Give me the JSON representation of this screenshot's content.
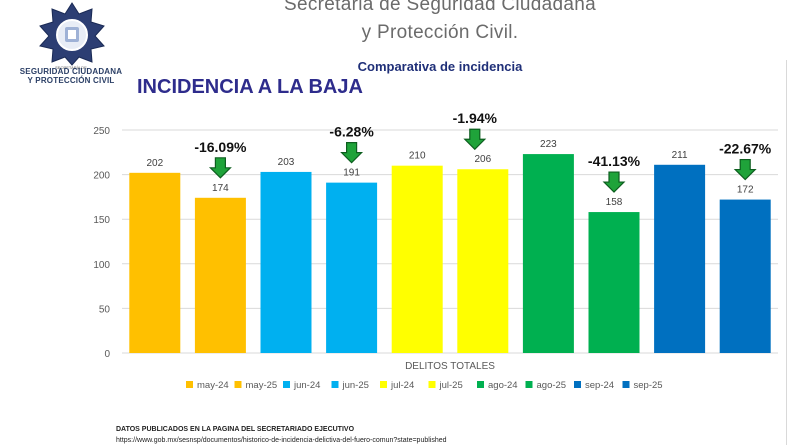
{
  "header": {
    "title_line1": "Secretaria de Seguridad Ciudadana",
    "title_line2": "y Protección Civil."
  },
  "logo": {
    "small_text": "SECRETARÍA DE",
    "line1": "SEGURIDAD CIUDADANA",
    "line2": "Y PROTECCIÓN CIVIL"
  },
  "subtitle": "Comparativa de incidencia",
  "headline": "INCIDENCIA A LA BAJA",
  "chart_data": {
    "type": "bar",
    "xlabel": "DELITOS TOTALES",
    "ylim": [
      0,
      250
    ],
    "yticks": [
      0,
      50,
      100,
      150,
      200,
      250
    ],
    "grid": true,
    "legend": "bottom",
    "series": [
      {
        "name": "may-24",
        "value": 202,
        "color": "#FFC000"
      },
      {
        "name": "may-25",
        "value": 174,
        "color": "#FFC000"
      },
      {
        "name": "jun-24",
        "value": 203,
        "color": "#00B0F0"
      },
      {
        "name": "jun-25",
        "value": 191,
        "color": "#00B0F0"
      },
      {
        "name": "jul-24",
        "value": 210,
        "color": "#FFFF00"
      },
      {
        "name": "jul-25",
        "value": 206,
        "color": "#FFFF00"
      },
      {
        "name": "ago-24",
        "value": 223,
        "color": "#00B050"
      },
      {
        "name": "ago-25",
        "value": 158,
        "color": "#00B050"
      },
      {
        "name": "sep-24",
        "value": 211,
        "color": "#0070C0"
      },
      {
        "name": "sep-25",
        "value": 172,
        "color": "#0070C0"
      }
    ],
    "annotations": [
      {
        "text": "-16.09%",
        "after_series": "may-25"
      },
      {
        "text": "-6.28%",
        "after_series": "jun-25"
      },
      {
        "text": "-1.94%",
        "after_series": "jul-25"
      },
      {
        "text": "-41.13%",
        "after_series": "ago-25"
      },
      {
        "text": "-22.67%",
        "after_series": "sep-25"
      }
    ],
    "annotation_arrow_color": "#1FA33A"
  },
  "footer": {
    "line1": "DATOS PUBLICADOS EN LA PAGINA DEL SECRETARIADO EJECUTIVO",
    "line2": "https://www.gob.mx/sesnsp/documentos/historico-de-incidencia-delictiva-del-fuero-comun?state=published"
  }
}
